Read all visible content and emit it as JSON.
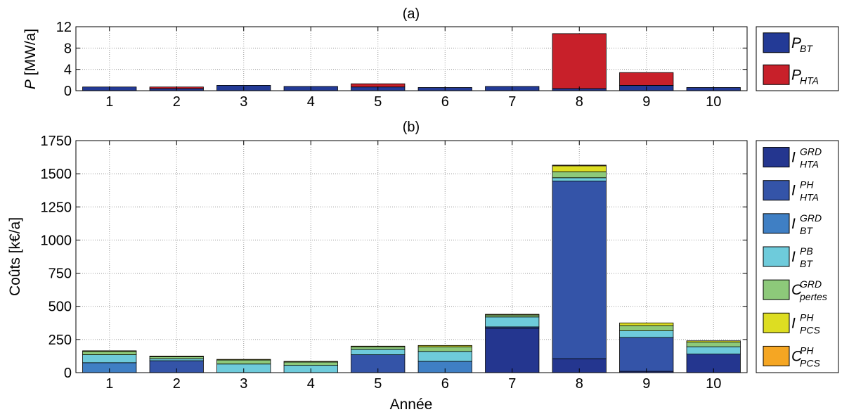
{
  "chart_data": [
    {
      "type": "bar",
      "stacked": true,
      "title": "(a)",
      "ylabel_var": "P",
      "ylabel_unit": "[MW/a]",
      "categories": [
        "1",
        "2",
        "3",
        "4",
        "5",
        "6",
        "7",
        "8",
        "9",
        "10"
      ],
      "ylim": [
        0,
        12
      ],
      "yticks": [
        0,
        4,
        8,
        12
      ],
      "ytick_labels": [
        "0",
        "4",
        "8",
        "12"
      ],
      "grid": true,
      "legend_position": "right",
      "series": [
        {
          "name": "P_BT",
          "label_main": "P",
          "label_sub": "BT",
          "label_sup": "",
          "color": "#233A96",
          "values": [
            0.7,
            0.4,
            1.0,
            0.8,
            0.7,
            0.6,
            0.8,
            0.4,
            1.0,
            0.6
          ]
        },
        {
          "name": "P_HTA",
          "label_main": "P",
          "label_sub": "HTA",
          "label_sup": "",
          "color": "#C8202A",
          "values": [
            0.0,
            0.3,
            0.0,
            0.0,
            0.6,
            0.0,
            0.0,
            10.3,
            2.4,
            0.0
          ]
        }
      ]
    },
    {
      "type": "bar",
      "stacked": true,
      "title": "(b)",
      "xlabel": "Année",
      "ylabel": "Coûts [k€/a]",
      "categories": [
        "1",
        "2",
        "3",
        "4",
        "5",
        "6",
        "7",
        "8",
        "9",
        "10"
      ],
      "ylim": [
        0,
        1750
      ],
      "yticks": [
        0,
        250,
        500,
        750,
        1000,
        1250,
        1500,
        1750
      ],
      "ytick_labels": [
        "0",
        "250",
        "500",
        "750",
        "1000",
        "1250",
        "1500",
        "1750"
      ],
      "grid": true,
      "legend_position": "right",
      "series": [
        {
          "name": "I_HTA^GRD",
          "label_main": "I",
          "label_sub": "HTA",
          "label_sup": "GRD",
          "color": "#24368F",
          "values": [
            0,
            0,
            0,
            0,
            0,
            0,
            335,
            105,
            10,
            140
          ]
        },
        {
          "name": "I_HTA^PH",
          "label_main": "I",
          "label_sub": "HTA",
          "label_sup": "PH",
          "color": "#3454A8",
          "values": [
            0,
            90,
            0,
            0,
            135,
            0,
            10,
            1340,
            255,
            0
          ]
        },
        {
          "name": "I_BT^GRD",
          "label_main": "I",
          "label_sub": "BT",
          "label_sup": "GRD",
          "color": "#3F7FC4",
          "values": [
            75,
            0,
            0,
            0,
            0,
            85,
            0,
            0,
            0,
            0
          ]
        },
        {
          "name": "I_BT^PB",
          "label_main": "I",
          "label_sub": "BT",
          "label_sup": "PB",
          "color": "#6ECBDB",
          "values": [
            60,
            15,
            65,
            55,
            40,
            75,
            75,
            25,
            50,
            55
          ]
        },
        {
          "name": "C_pertes^GRD",
          "label_main": "C",
          "label_sub": "pertes",
          "label_sup": "GRD",
          "color": "#8DC97A",
          "values": [
            25,
            15,
            30,
            25,
            20,
            35,
            15,
            45,
            40,
            35
          ]
        },
        {
          "name": "I_PCS^PH",
          "label_main": "I",
          "label_sub": "PCS",
          "label_sup": "PH",
          "color": "#DDDD22",
          "values": [
            5,
            5,
            5,
            5,
            5,
            10,
            5,
            45,
            20,
            10
          ]
        },
        {
          "name": "C_PCS^PH",
          "label_main": "C",
          "label_sub": "PCS",
          "label_sup": "PH",
          "color": "#F5A623",
          "values": [
            0,
            0,
            0,
            0,
            0,
            0,
            0,
            5,
            0,
            0
          ]
        }
      ]
    }
  ]
}
